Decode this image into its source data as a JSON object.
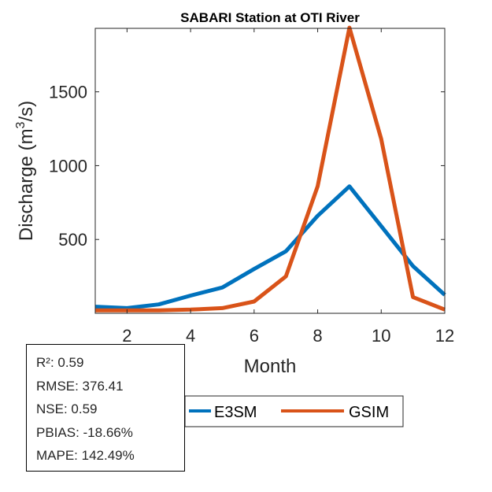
{
  "chart_data": {
    "type": "line",
    "title": "SABARI  Station at  OTI  River",
    "xlabel": "Month",
    "ylabel_main": "Discharge (m",
    "ylabel_sup": "3",
    "ylabel_tail": "/s)",
    "xlim": [
      1,
      12
    ],
    "ylim": [
      0,
      1930
    ],
    "xticks": [
      2,
      4,
      6,
      8,
      10,
      12
    ],
    "yticks": [
      500,
      1000,
      1500
    ],
    "grid": false,
    "x": [
      1,
      2,
      3,
      4,
      5,
      6,
      7,
      8,
      9,
      10,
      11,
      12
    ],
    "series": [
      {
        "name": "E3SM",
        "color": "#0072BD",
        "values": [
          45,
          35,
          60,
          120,
          175,
          300,
          420,
          660,
          860,
          590,
          320,
          125
        ]
      },
      {
        "name": "GSIM",
        "color": "#D95319",
        "values": [
          20,
          20,
          20,
          25,
          35,
          80,
          250,
          860,
          1935,
          1180,
          110,
          25
        ]
      }
    ],
    "legend_position": "bottom-center"
  },
  "stats": {
    "r2": "R²: 0.59",
    "rmse": "RMSE: 376.41",
    "nse": "NSE: 0.59",
    "pbias": "PBIAS: -18.66%",
    "mape": "MAPE: 142.49%"
  }
}
